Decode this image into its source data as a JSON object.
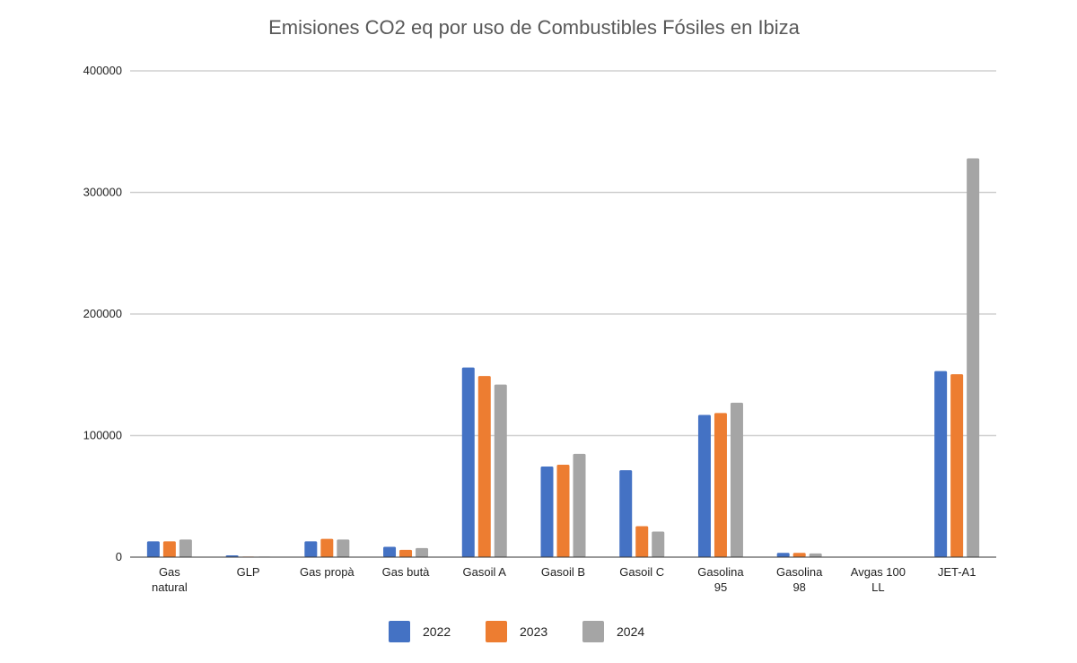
{
  "chart_data": {
    "type": "bar",
    "title": "Emisiones CO2 eq por uso de Combustibles Fósiles en Ibiza",
    "xlabel": "",
    "ylabel": "",
    "categories": [
      [
        "Gas",
        "natural"
      ],
      [
        "GLP"
      ],
      [
        "Gas propà"
      ],
      [
        "Gas butà"
      ],
      [
        "Gasoil A"
      ],
      [
        "Gasoil B"
      ],
      [
        "Gasoil C"
      ],
      [
        "Gasolina",
        "95"
      ],
      [
        "Gasolina",
        "98"
      ],
      [
        "Avgas 100",
        "LL"
      ],
      [
        "JET-A1"
      ]
    ],
    "series": [
      {
        "name": "2022",
        "color": "#4472C4",
        "values": [
          13000,
          1500,
          13000,
          8500,
          156000,
          74500,
          71500,
          117000,
          3500,
          0,
          153000
        ]
      },
      {
        "name": "2023",
        "color": "#ED7D31",
        "values": [
          13000,
          500,
          15000,
          6000,
          149000,
          76000,
          25500,
          118500,
          3500,
          0,
          150500
        ]
      },
      {
        "name": "2024",
        "color": "#A5A5A5",
        "values": [
          14500,
          500,
          14500,
          7500,
          142000,
          85000,
          21000,
          127000,
          3000,
          0,
          328000
        ]
      }
    ],
    "yticks": [
      "0",
      "100000",
      "200000",
      "300000",
      "400000"
    ],
    "ylim": [
      0,
      400000
    ],
    "grid": true,
    "legend": "bottom"
  }
}
